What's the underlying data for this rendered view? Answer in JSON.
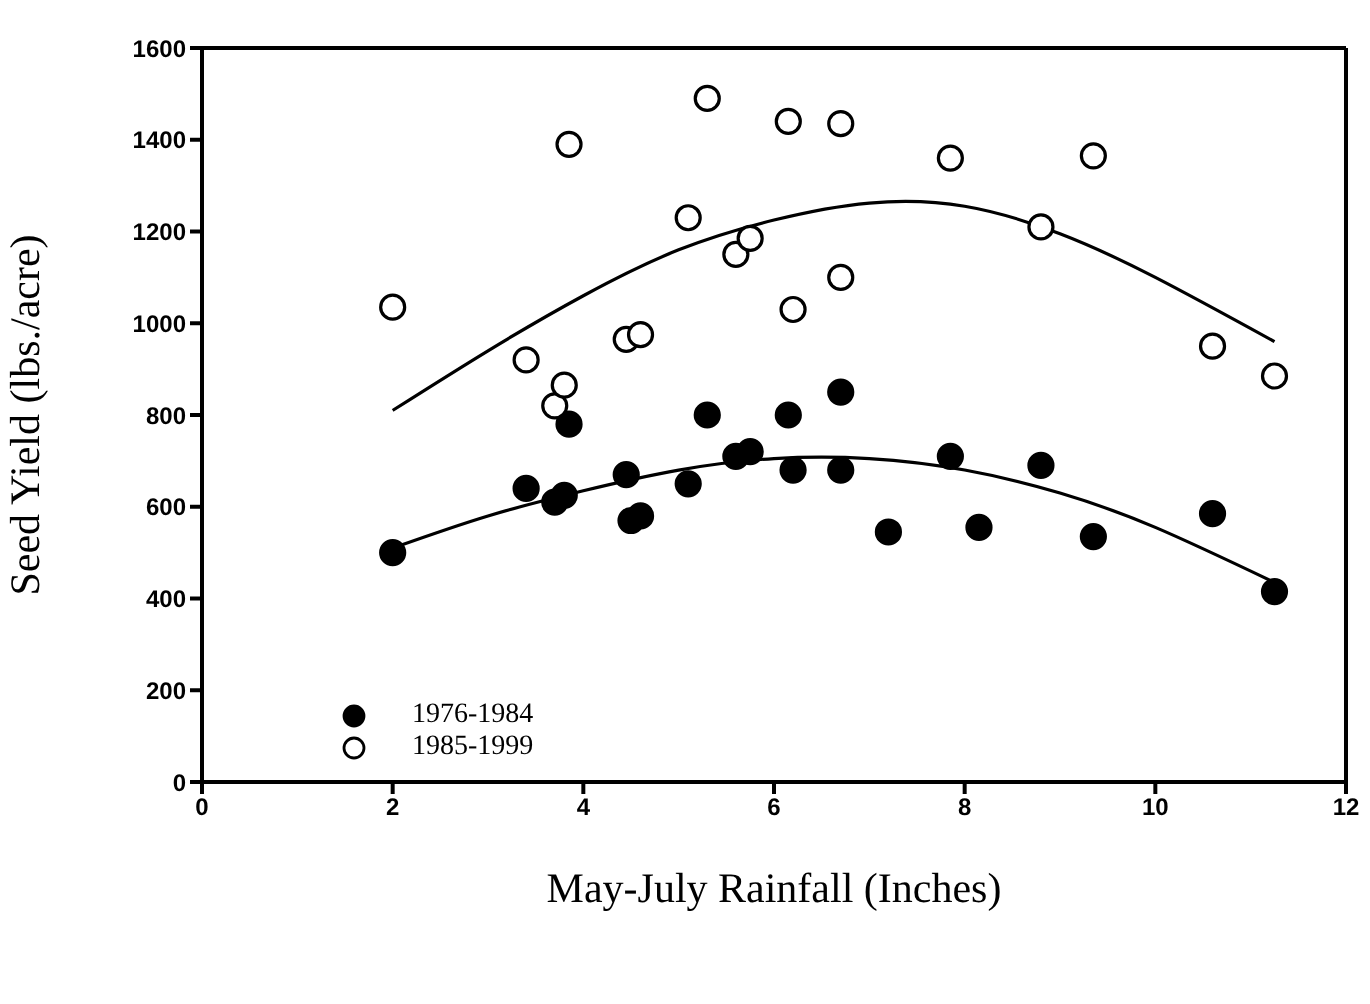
{
  "chart_data": {
    "type": "scatter",
    "xlabel": "May-July Rainfall (Inches)",
    "ylabel": "Seed Yield (lbs./acre)",
    "xlim": [
      0,
      12
    ],
    "xticks": [
      0,
      2,
      4,
      6,
      8,
      10,
      12
    ],
    "ylim": [
      0,
      1600
    ],
    "yticks": [
      0,
      200,
      400,
      600,
      800,
      1000,
      1200,
      1400,
      1600
    ],
    "legend": "bottom left",
    "series": [
      {
        "name": "1976-1984",
        "color": "#000000",
        "marker": "circle",
        "x": [
          2,
          3.4,
          3.7,
          3.8,
          3.85,
          4.45,
          4.5,
          4.6,
          5.1,
          5.3,
          5.6,
          5.75,
          6.15,
          6.2,
          6.7,
          6.7,
          7.2,
          7.85,
          8.15,
          8.8,
          9.35,
          10.6,
          11.25
        ],
        "values": [
          500,
          640,
          610,
          625,
          780,
          670,
          570,
          580,
          650,
          800,
          710,
          720,
          800,
          680,
          850,
          680,
          545,
          710,
          555,
          690,
          535,
          585,
          415
        ]
      },
      {
        "name": "1985-1999",
        "color": "#ffffff",
        "marker": "circle",
        "x": [
          2,
          3.4,
          3.7,
          3.8,
          3.85,
          4.45,
          4.6,
          5.1,
          5.3,
          5.6,
          5.75,
          6.15,
          6.2,
          6.7,
          6.7,
          7.85,
          8.8,
          9.35,
          10.6,
          11.25
        ],
        "values": [
          1035,
          920,
          820,
          865,
          1390,
          965,
          975,
          1230,
          1490,
          1150,
          1185,
          1440,
          1030,
          1435,
          1100,
          1360,
          1210,
          1365,
          950,
          885
        ]
      },
      {
        "type": "line",
        "color": "#000000",
        "marker": "none",
        "x": [
          2,
          3,
          4,
          5,
          6,
          7,
          8,
          9,
          10,
          11.25
        ],
        "values": [
          510,
          580,
          635,
          680,
          705,
          705,
          680,
          630,
          555,
          435
        ]
      },
      {
        "type": "line",
        "color": "#000000",
        "marker": "none",
        "x": [
          2,
          3,
          4,
          5,
          6,
          7,
          8,
          9,
          10,
          11.25
        ],
        "values": [
          810,
          940,
          1060,
          1160,
          1225,
          1262,
          1255,
          1195,
          1100,
          960
        ]
      }
    ]
  }
}
